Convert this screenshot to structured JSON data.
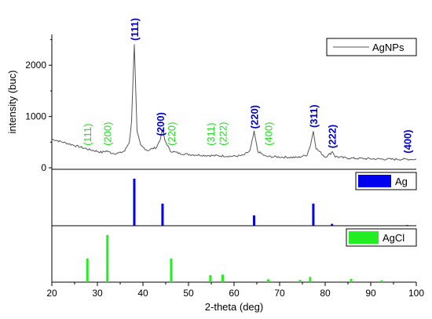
{
  "chart_data": {
    "type": "line",
    "xlabel": "2-theta (deg)",
    "x_ticks": [
      20,
      30,
      40,
      50,
      60,
      70,
      80,
      90,
      100
    ],
    "xlim": [
      20,
      100
    ],
    "panels": [
      {
        "type": "line",
        "ylabel": "intensity (buc)",
        "ylim": [
          -30,
          2600
        ],
        "y_ticks": [
          0,
          1000,
          2000
        ],
        "series": [
          {
            "name": "AgNPs",
            "color": "#555555",
            "x": [
              20,
              22,
              24,
              26,
              28,
              30,
              31,
              32,
              33,
              34,
              35,
              36,
              37,
              37.5,
              38.1,
              38.7,
              39.5,
              41,
              43,
              43.8,
              44.3,
              44.8,
              46,
              48,
              50,
              52,
              54,
              56,
              58,
              60,
              62,
              63.5,
              64.4,
              65.2,
              67,
              70,
              72,
              74,
              76,
              76.8,
              77.4,
              78,
              80,
              81.2,
              81.6,
              82.2,
              84,
              86,
              88,
              90,
              92,
              94,
              96,
              98,
              100
            ],
            "y": [
              560,
              510,
              460,
              410,
              360,
              320,
              300,
              330,
              290,
              280,
              290,
              330,
              500,
              900,
              2420,
              700,
              430,
              340,
              400,
              560,
              740,
              540,
              330,
              280,
              260,
              250,
              240,
              235,
              230,
              225,
              240,
              330,
              700,
              320,
              220,
              210,
              205,
              200,
              250,
              450,
              720,
              380,
              210,
              280,
              320,
              220,
              195,
              185,
              180,
              175,
              170,
              168,
              165,
              165,
              165
            ]
          }
        ],
        "peak_labels_blue": [
          {
            "text": "(111)",
            "x": 38.1
          },
          {
            "text": "(200)",
            "x": 43.8
          },
          {
            "text": "(220)",
            "x": 64.4
          },
          {
            "text": "(311)",
            "x": 77.4
          },
          {
            "text": "(222)",
            "x": 81.5
          },
          {
            "text": "(400)",
            "x": 98
          }
        ],
        "peak_labels_green": [
          {
            "text": "(111)",
            "x": 27.8
          },
          {
            "text": "(200)",
            "x": 32.2
          },
          {
            "text": "(220)",
            "x": 46.2
          },
          {
            "text": "(311)",
            "x": 54.8
          },
          {
            "text": "(222)",
            "x": 57.5
          },
          {
            "text": "(400)",
            "x": 67.5
          }
        ]
      },
      {
        "type": "bar",
        "series": [
          {
            "name": "Ag",
            "color": "#0000ee",
            "x": [
              38.1,
              44.3,
              64.4,
              77.4,
              81.5,
              98.0
            ],
            "values": [
              100,
              47,
              22,
              47,
              4,
              1.5
            ]
          }
        ],
        "ylim": [
          0,
          110
        ]
      },
      {
        "type": "bar",
        "series": [
          {
            "name": "AgCl",
            "color": "#22ee22",
            "x": [
              27.8,
              32.2,
              46.2,
              54.8,
              57.5,
              67.5,
              74.5,
              76.7,
              85.7,
              92.4
            ],
            "values": [
              50,
              100,
              50,
              15,
              16,
              6,
              5,
              11,
              7,
              4
            ]
          }
        ],
        "ylim": [
          0,
          110
        ]
      }
    ]
  }
}
